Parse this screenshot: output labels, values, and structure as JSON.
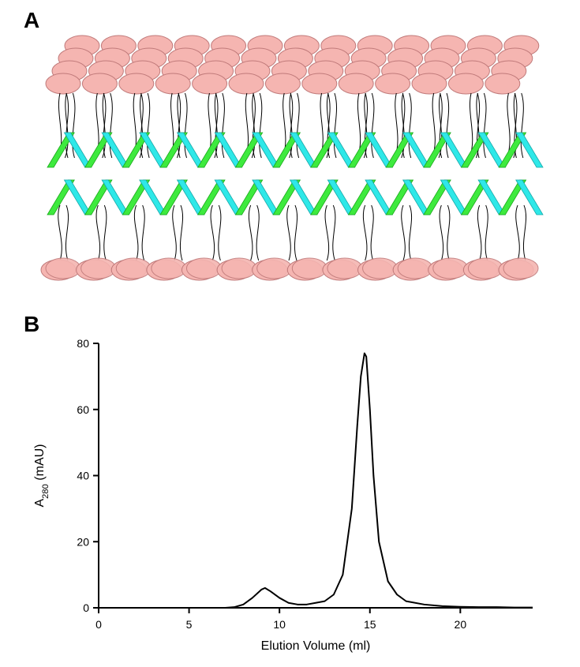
{
  "panelA": {
    "label": "A",
    "diagram": {
      "background": "#ffffff",
      "lipid_head_color": "#f5b5b1",
      "lipid_head_stroke": "#c07a7a",
      "lipid_tail_color": "#000000",
      "helix_colors": [
        "#3eea3e",
        "#2ee8e8"
      ],
      "ellipse_rx": 22,
      "ellipse_ry": 13,
      "top_rows": 4,
      "top_cols": 13,
      "bottom_row_count": 14,
      "helix_rows": 2,
      "helix_segments": 13
    }
  },
  "panelB": {
    "label": "B",
    "chart": {
      "type": "line",
      "xlabel": "Elution Volume (ml)",
      "ylabel": "A",
      "ylabel_sub": "280",
      "yunits": " (mAU)",
      "xlim": [
        0,
        24
      ],
      "ylim": [
        0,
        80
      ],
      "xtick_step": 5,
      "ytick_step": 20,
      "label_fontsize": 16,
      "tick_fontsize": 14,
      "line_color": "#000000",
      "line_width": 2,
      "axis_color": "#000000",
      "background_color": "#ffffff",
      "data": {
        "x": [
          0,
          1,
          2,
          3,
          4,
          5,
          6,
          7,
          7.5,
          8,
          8.5,
          9,
          9.2,
          9.5,
          10,
          10.5,
          11,
          11.5,
          12,
          12.5,
          13,
          13.5,
          14,
          14.3,
          14.5,
          14.7,
          14.8,
          15,
          15.2,
          15.5,
          16,
          16.5,
          17,
          18,
          19,
          20,
          21,
          22,
          23,
          24
        ],
        "y": [
          0,
          0,
          0,
          0,
          0,
          0,
          0,
          0,
          0.2,
          1,
          3,
          5.5,
          6,
          5,
          3,
          1.5,
          1,
          1,
          1.5,
          2,
          4,
          10,
          30,
          55,
          70,
          77,
          76,
          60,
          40,
          20,
          8,
          4,
          2,
          1,
          0.5,
          0.3,
          0.2,
          0.2,
          0.1,
          0.1
        ]
      }
    }
  }
}
